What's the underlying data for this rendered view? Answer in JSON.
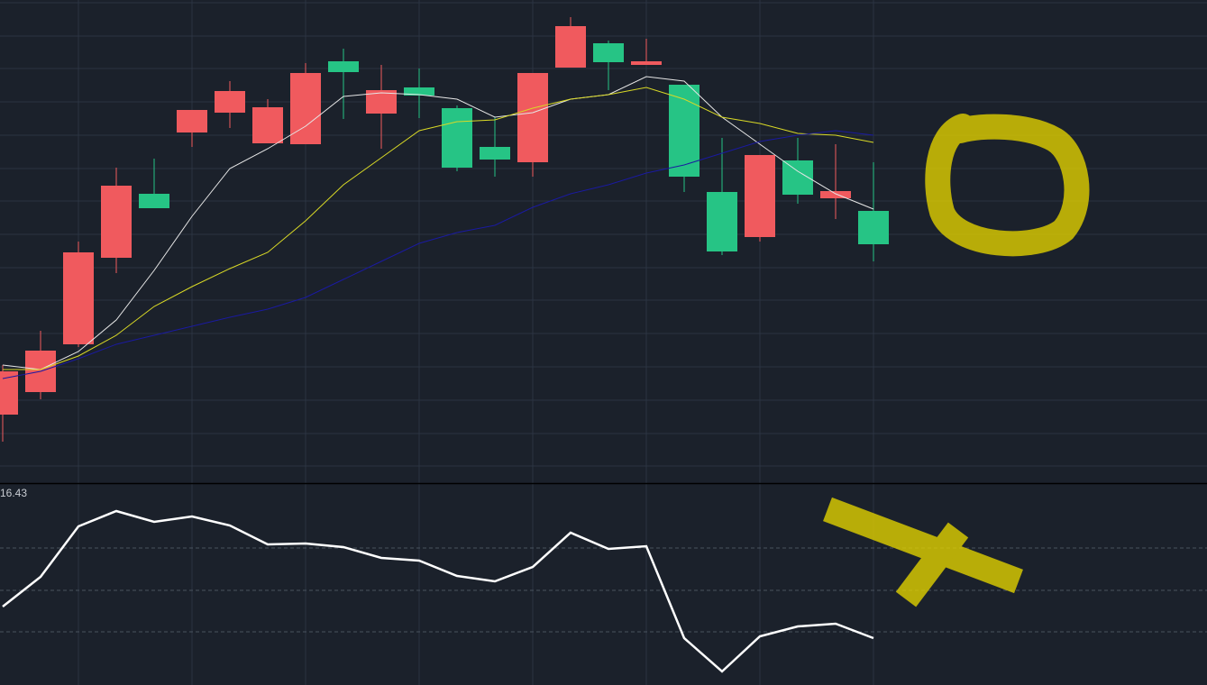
{
  "chart_data": [
    {
      "type": "candlestick",
      "categories": [
        null,
        null,
        null,
        null,
        null,
        null,
        null,
        null,
        null,
        null,
        null,
        null,
        null,
        null,
        null,
        null,
        null,
        null,
        null,
        null,
        null,
        null,
        null,
        null
      ],
      "open": [
        80,
        105,
        158,
        254,
        325,
        393,
        415,
        381,
        380,
        472,
        414,
        443,
        420,
        377,
        360,
        465,
        492,
        468,
        446,
        327,
        277,
        362,
        320,
        306
      ],
      "high": [
        135,
        173,
        272,
        354,
        364,
        418,
        450,
        430,
        470,
        486,
        468,
        464,
        423,
        410,
        459,
        521,
        495,
        497,
        446,
        387,
        368,
        387,
        380,
        360
      ],
      "low": [
        50,
        97,
        155,
        237,
        309,
        377,
        398,
        381,
        380,
        408,
        375,
        409,
        350,
        344,
        344,
        465,
        440,
        468,
        327,
        257,
        272,
        314,
        297,
        250
      ],
      "close": [
        128,
        151,
        260,
        334,
        309,
        418,
        439,
        421,
        459,
        460,
        440,
        434,
        354,
        363,
        459,
        511,
        471,
        472,
        344,
        261,
        368,
        324,
        328,
        269
      ],
      "up_color": "#f05a5e",
      "down_color": "#26c485",
      "series": [
        {
          "color": "#e6e6e6",
          "values": [
            135,
            130,
            150,
            185,
            240,
            300,
            353,
            375,
            400,
            433,
            437,
            435,
            430,
            410,
            415,
            430,
            435,
            455,
            450,
            410,
            380,
            350,
            325,
            308
          ]
        },
        {
          "color": "#d9d926",
          "values": [
            130,
            130,
            145,
            168,
            200,
            222,
            242,
            260,
            295,
            335,
            365,
            395,
            405,
            407,
            420,
            430,
            435,
            443,
            430,
            410,
            403,
            392,
            390,
            382
          ]
        },
        {
          "color": "#1a1aa0",
          "values": [
            120,
            128,
            142,
            158,
            168,
            178,
            188,
            197,
            210,
            230,
            250,
            270,
            282,
            290,
            310,
            325,
            335,
            348,
            357,
            370,
            383,
            390,
            395,
            390
          ]
        }
      ],
      "ylim": [
        0,
        540
      ],
      "yticks": [
        23,
        59,
        96,
        133,
        170,
        207,
        243,
        280,
        317,
        353,
        390,
        427,
        464,
        500,
        537
      ],
      "grid": true
    },
    {
      "type": "line",
      "label": "16.43",
      "series": [
        {
          "color": "#ffffff",
          "values": [
            87,
            120,
            176,
            193,
            181,
            187,
            177,
            156,
            157,
            153,
            141,
            138,
            121,
            115,
            131,
            169,
            151,
            154,
            52,
            15,
            54,
            65,
            68,
            52
          ]
        }
      ],
      "ylim": [
        0,
        223
      ],
      "yticks": [
        59,
        105,
        152
      ],
      "grid": true
    }
  ]
}
